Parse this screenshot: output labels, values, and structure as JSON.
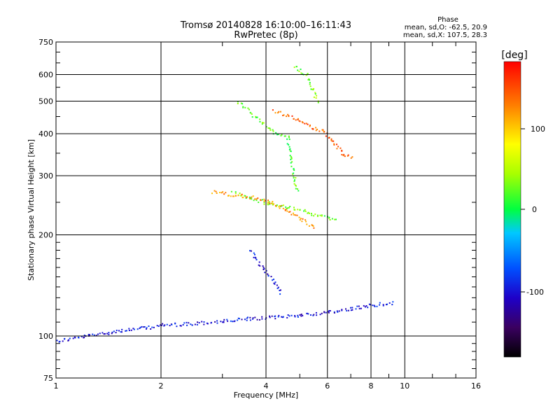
{
  "chart_data": {
    "type": "scatter",
    "title": "Tromsø 20140828 16:10:00–16:11:43",
    "subtitle": "RwPretec (8p)",
    "xlabel": "Frequency [MHz]",
    "ylabel": "Stationary phase Virtual Height [km]",
    "x_scale": "log",
    "y_scale": "log",
    "xlim": [
      1,
      16
    ],
    "ylim": [
      75,
      750
    ],
    "x_ticks": [
      "1",
      "2",
      "4",
      "6",
      "8",
      "10",
      "16"
    ],
    "y_ticks": [
      "75",
      "100",
      "200",
      "300",
      "400",
      "500",
      "600",
      "750"
    ],
    "grid": true,
    "phase_info": {
      "heading": "Phase",
      "line1": "mean, sd,O: -62.5, 20.9",
      "line2": "mean, sd,X: 107.5, 28.3"
    },
    "colorbar": {
      "label": "[deg]",
      "range": [
        -180,
        180
      ],
      "ticks": [
        "100",
        "0",
        "-100"
      ]
    },
    "traces": [
      {
        "x": [
          1.0,
          1.2,
          1.5,
          1.8,
          2.0,
          2.4,
          3.0,
          3.6,
          4.2,
          5.0,
          6.0,
          7.0,
          8.0,
          9.2
        ],
        "y": [
          97,
          100,
          104,
          106,
          108,
          109,
          111,
          113,
          114,
          116,
          118,
          121,
          124,
          126
        ],
        "phase": -100
      },
      {
        "x": [
          3.3,
          3.7,
          4.2,
          4.6,
          4.8,
          4.9
        ],
        "y": [
          500,
          452,
          405,
          392,
          300,
          270
        ],
        "phase": 20
      },
      {
        "x": [
          3.2,
          3.6,
          4.0,
          4.4,
          4.8,
          5.2,
          5.6,
          6.0,
          6.3
        ],
        "y": [
          270,
          258,
          250,
          245,
          240,
          235,
          230,
          226,
          222
        ],
        "phase": 30
      },
      {
        "x": [
          4.2,
          4.6,
          5.0,
          5.4,
          5.8,
          6.2,
          6.6,
          7.0
        ],
        "y": [
          470,
          455,
          440,
          420,
          410,
          380,
          350,
          340
        ],
        "phase": 140
      },
      {
        "x": [
          4.8,
          5.0,
          5.2,
          5.4,
          5.6
        ],
        "y": [
          640,
          620,
          600,
          550,
          500
        ],
        "phase": 30
      },
      {
        "x": [
          2.8,
          3.4,
          4.0,
          4.5,
          5.0,
          5.5
        ],
        "y": [
          270,
          262,
          255,
          240,
          225,
          210
        ],
        "phase": 120
      },
      {
        "x": [
          3.6,
          3.9,
          4.2,
          4.4
        ],
        "y": [
          180,
          160,
          145,
          135
        ],
        "phase": -100
      }
    ]
  }
}
